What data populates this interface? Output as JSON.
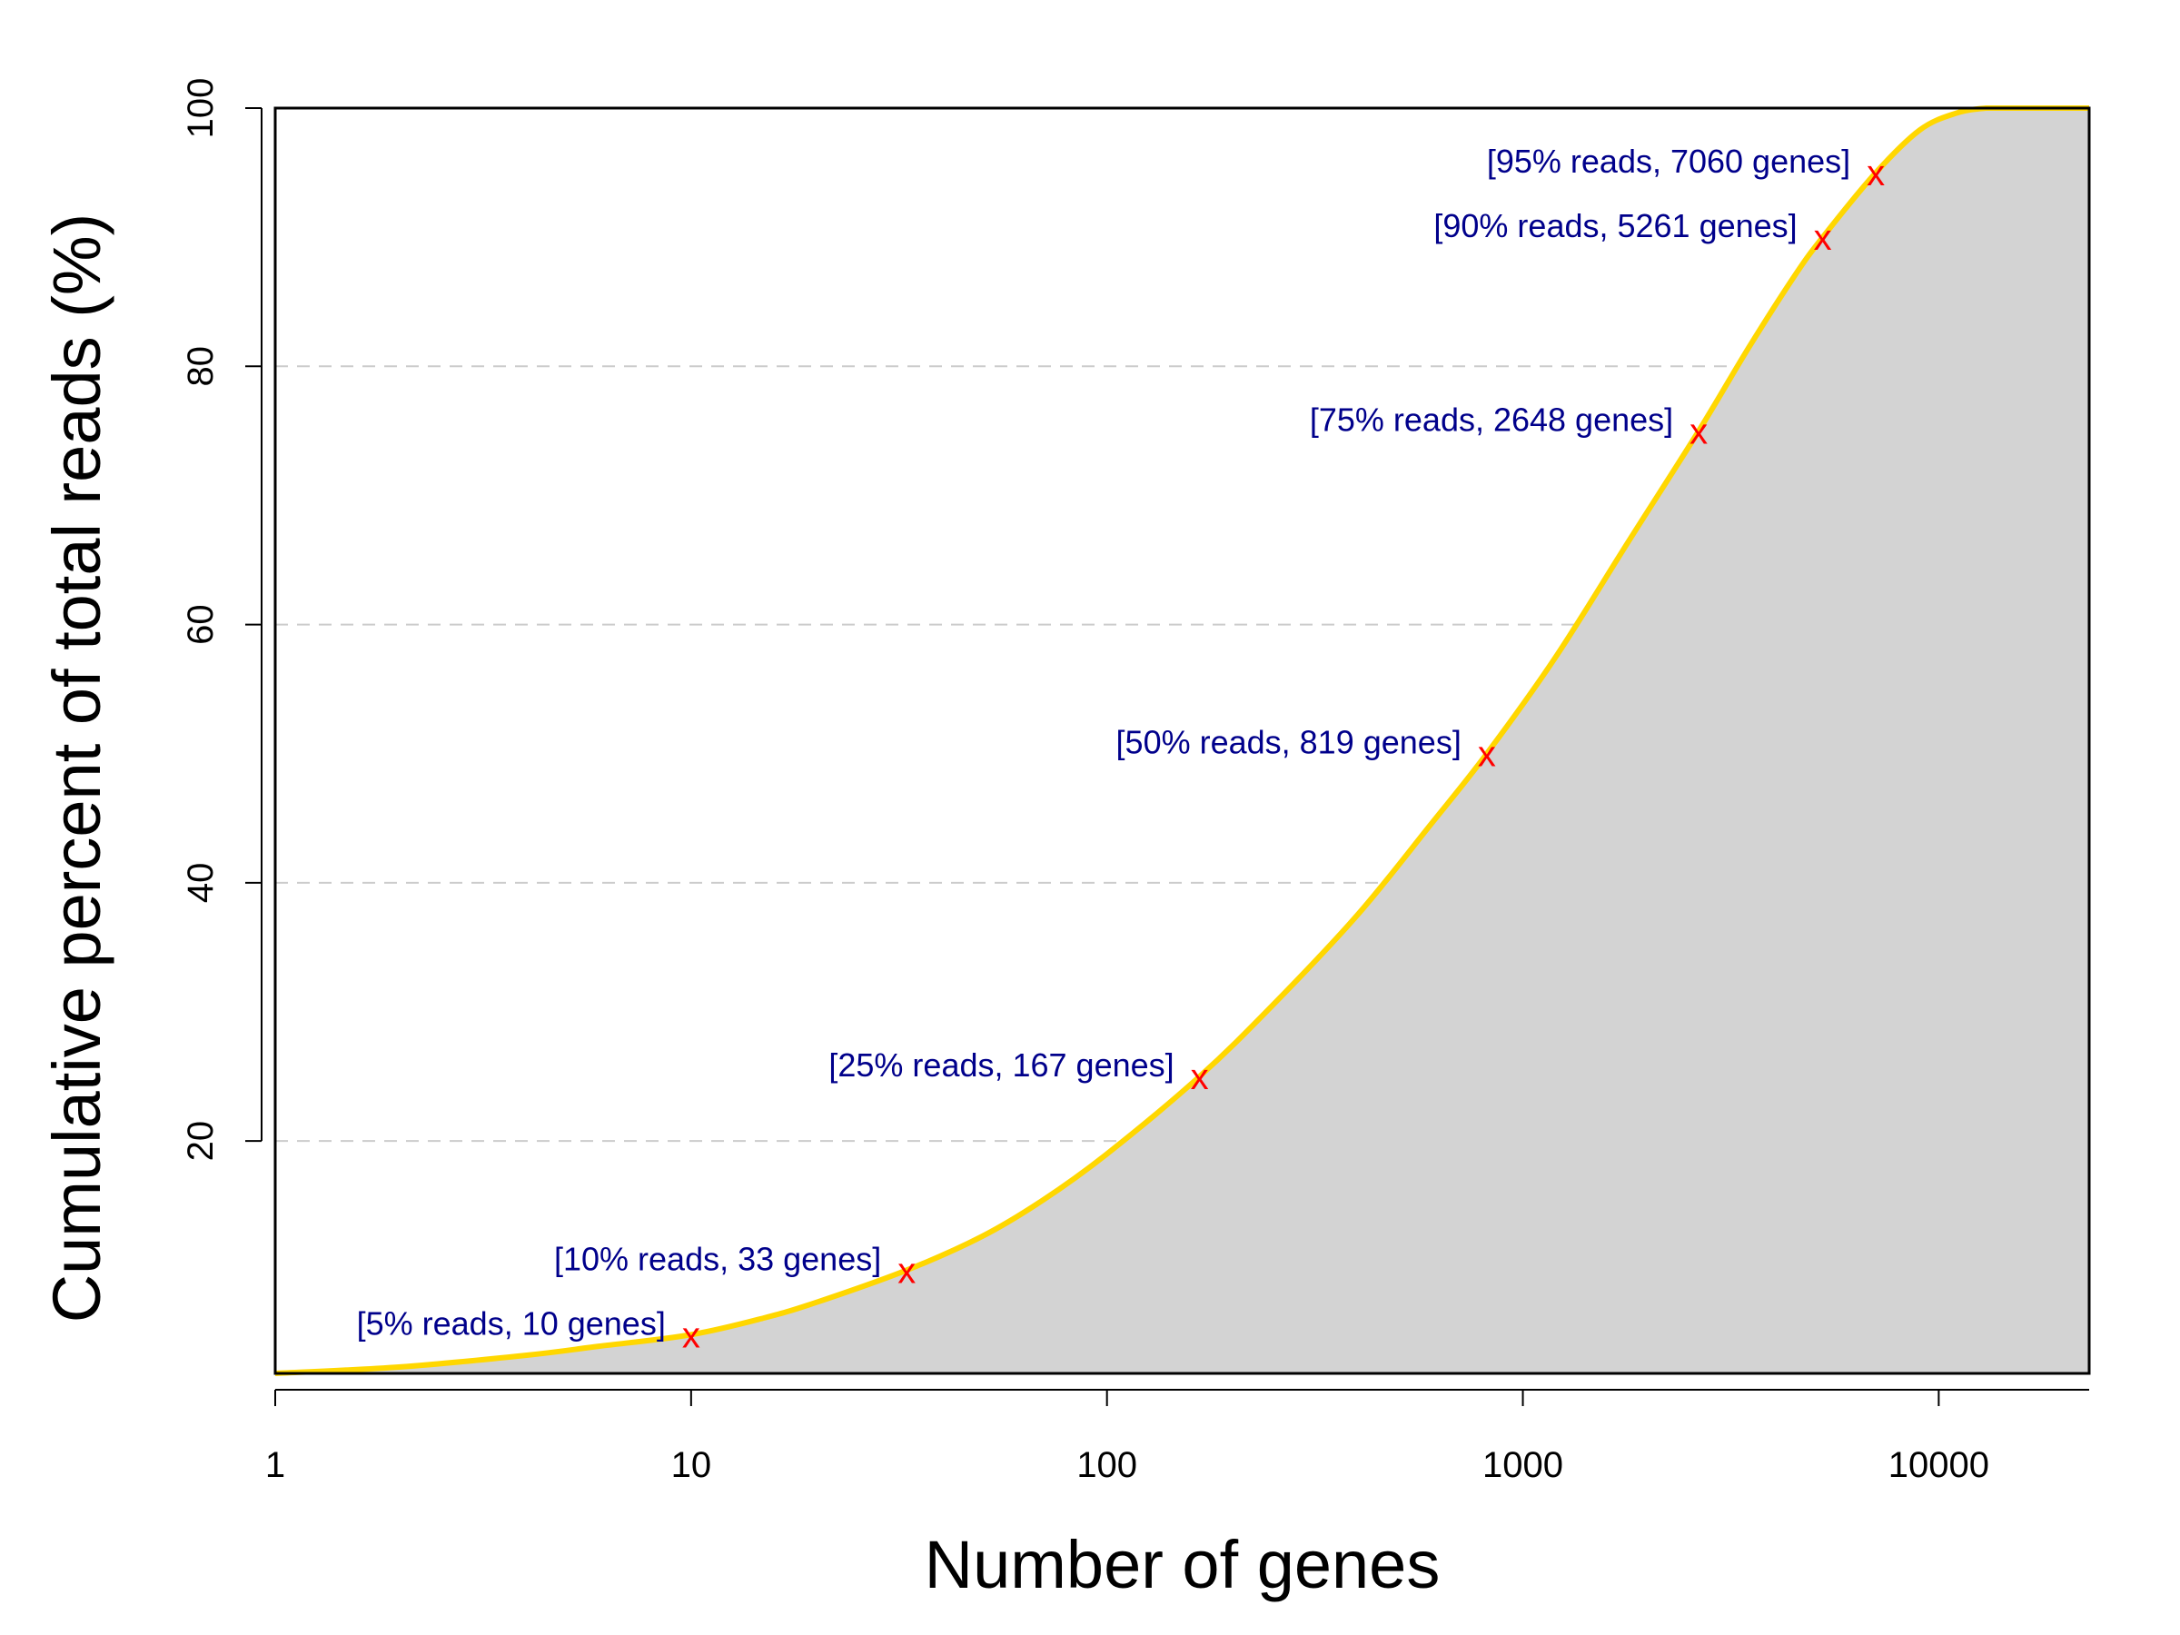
{
  "chart_data": {
    "type": "area",
    "xlabel": "Number of genes",
    "ylabel": "Cumulative percent of total reads (%)",
    "x_scale": "log",
    "xlim": [
      1,
      23000
    ],
    "ylim": [
      2,
      100
    ],
    "x_ticks": [
      {
        "value": 1,
        "label": "1"
      },
      {
        "value": 10,
        "label": "10"
      },
      {
        "value": 100,
        "label": "100"
      },
      {
        "value": 1000,
        "label": "1000"
      },
      {
        "value": 10000,
        "label": "10000"
      }
    ],
    "y_ticks": [
      {
        "value": 20,
        "label": "20"
      },
      {
        "value": 40,
        "label": "40"
      },
      {
        "value": 60,
        "label": "60"
      },
      {
        "value": 80,
        "label": "80"
      },
      {
        "value": 100,
        "label": "100"
      }
    ],
    "grid": "horizontal dashed",
    "series": [
      {
        "x": [
          1,
          2,
          4,
          6,
          10,
          15,
          20,
          33,
          50,
          70,
          100,
          167,
          250,
          400,
          600,
          819,
          1200,
          1800,
          2648,
          3500,
          4500,
          5261,
          7060,
          9000,
          11000,
          13000,
          15000,
          23000
        ],
        "y": [
          2,
          2.5,
          3.4,
          4.1,
          5,
          6.3,
          7.5,
          10,
          12.6,
          15.4,
          19,
          25,
          30.5,
          37.5,
          44.5,
          50,
          57.5,
          66.5,
          75,
          81.5,
          87,
          90,
          95,
          98.3,
          99.6,
          100,
          100,
          100
        ]
      }
    ],
    "annotations": [
      {
        "x": 10,
        "y": 5,
        "label": "[5% reads, 10 genes]",
        "marker": "x"
      },
      {
        "x": 33,
        "y": 10,
        "label": "[10% reads, 33 genes]",
        "marker": "x"
      },
      {
        "x": 167,
        "y": 25,
        "label": "[25% reads, 167 genes]",
        "marker": "x"
      },
      {
        "x": 819,
        "y": 50,
        "label": "[50% reads, 819 genes]",
        "marker": "x"
      },
      {
        "x": 2648,
        "y": 75,
        "label": "[75% reads, 2648 genes]",
        "marker": "x"
      },
      {
        "x": 5261,
        "y": 90,
        "label": "[90% reads, 5261 genes]",
        "marker": "x"
      },
      {
        "x": 7060,
        "y": 95,
        "label": "[95% reads, 7060 genes]",
        "marker": "x"
      }
    ]
  },
  "colors": {
    "line": "#FFD700",
    "fill": "#D3D3D3",
    "annotation_text": "#00008B",
    "annotation_marker": "#FF0000",
    "grid": "#CCCCCC"
  }
}
